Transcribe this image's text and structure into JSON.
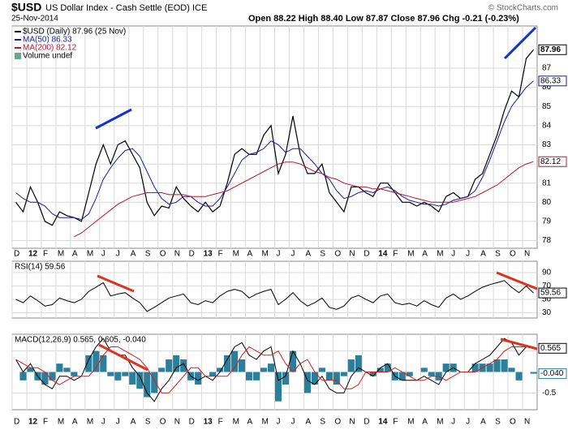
{
  "chart_data": [
    {
      "type": "line",
      "symbol": "$USD",
      "title": "US Dollar Index - Cash Settle (EOD) ICE",
      "subtitle": "25-Nov-2014",
      "quote": "Open 88.22 High 88.40 Low 87.87 Close 87.96 Chg -0.21 (-0.23%)",
      "credit": "© StockCharts.com",
      "notes": [
        "Volume undef"
      ],
      "categories": [
        "D",
        null,
        "12",
        null,
        "F",
        null,
        "M",
        null,
        "A",
        null,
        "M",
        null,
        "J",
        null,
        "J",
        null,
        "A",
        null,
        "S",
        null,
        "O",
        null,
        "N",
        null,
        "D",
        null,
        "13",
        null,
        "F",
        null,
        "M",
        null,
        "A",
        null,
        "M",
        null,
        "J",
        null,
        "J",
        null,
        "A",
        null,
        "S",
        null,
        "O",
        null,
        "N",
        null,
        "D",
        null,
        "14",
        null,
        "F",
        null,
        "M",
        null,
        "A",
        null,
        "M",
        null,
        "J",
        null,
        "J",
        null,
        "A",
        null,
        "S",
        null,
        "O",
        null,
        "N",
        null
      ],
      "ylim": [
        77.6,
        89.2
      ],
      "yticks": [
        78,
        79,
        80,
        81,
        82,
        83,
        84,
        85,
        86,
        87
      ],
      "grid": true,
      "series": [
        {
          "name": "$USD (Daily) 87.96 (25 Nov)",
          "color": "#000000",
          "style": "line",
          "tag": true,
          "values": [
            80.0,
            79.5,
            80.8,
            80.0,
            79.0,
            78.8,
            79.5,
            79.3,
            79.2,
            79.0,
            80.5,
            82.0,
            83.0,
            82.0,
            83.0,
            83.2,
            82.5,
            81.8,
            80.0,
            79.3,
            79.8,
            79.7,
            80.8,
            80.2,
            79.8,
            79.5,
            80.0,
            79.5,
            79.8,
            81.0,
            82.5,
            82.8,
            82.5,
            82.5,
            83.5,
            84.0,
            81.5,
            82.5,
            84.5,
            82.5,
            81.5,
            81.5,
            82.0,
            80.5,
            80.0,
            79.5,
            80.8,
            80.8,
            80.5,
            80.3,
            81.0,
            81.0,
            80.5,
            80.0,
            80.0,
            79.8,
            80.0,
            79.8,
            79.5,
            80.3,
            80.5,
            80.2,
            80.3,
            81.2,
            81.5,
            82.5,
            83.5,
            84.8,
            85.8,
            85.5,
            87.5,
            87.96
          ]
        },
        {
          "name": "MA(50) 86.33",
          "color": "#1a1a9c",
          "style": "line",
          "tag": true,
          "values": [
            80.5,
            80.2,
            80.0,
            80.0,
            79.8,
            79.4,
            79.2,
            79.2,
            79.2,
            79.1,
            79.4,
            80.2,
            81.2,
            81.8,
            82.3,
            82.7,
            82.8,
            82.4,
            81.6,
            80.8,
            80.2,
            79.9,
            80.0,
            80.3,
            80.3,
            80.0,
            79.8,
            79.8,
            80.2,
            80.8,
            81.5,
            82.2,
            82.5,
            82.6,
            82.8,
            83.2,
            83.0,
            82.6,
            82.8,
            82.8,
            82.4,
            82.0,
            81.5,
            81.2,
            80.6,
            80.2,
            80.3,
            80.5,
            80.6,
            80.5,
            80.7,
            80.8,
            80.6,
            80.3,
            80.1,
            80.0,
            79.9,
            79.9,
            79.8,
            79.9,
            80.1,
            80.2,
            80.3,
            80.6,
            81.3,
            82.2,
            83.2,
            84.2,
            85.0,
            85.5,
            86.0,
            86.33
          ]
        },
        {
          "name": "MA(200) 82.12",
          "color": "#b0183a",
          "style": "line",
          "tag": true,
          "values": [
            null,
            null,
            null,
            null,
            null,
            null,
            null,
            null,
            78.2,
            78.4,
            78.7,
            79.0,
            79.3,
            79.6,
            79.9,
            80.1,
            80.3,
            80.4,
            80.5,
            80.5,
            80.5,
            80.4,
            80.4,
            80.4,
            80.3,
            80.3,
            80.3,
            80.4,
            80.5,
            80.6,
            80.8,
            81.0,
            81.2,
            81.4,
            81.6,
            81.8,
            82.0,
            82.1,
            82.1,
            82.0,
            81.8,
            81.6,
            81.5,
            81.3,
            81.2,
            81.0,
            80.9,
            80.8,
            80.8,
            80.7,
            80.7,
            80.6,
            80.5,
            80.4,
            80.3,
            80.2,
            80.1,
            80.0,
            80.0,
            80.0,
            80.0,
            80.1,
            80.2,
            80.3,
            80.5,
            80.7,
            80.9,
            81.2,
            81.5,
            81.8,
            82.0,
            82.12
          ]
        }
      ]
    },
    {
      "type": "line",
      "label": "RSI(14) 59.56",
      "ylim": [
        22,
        107
      ],
      "yticks": [
        30,
        50,
        70,
        90
      ],
      "grid": true,
      "series": [
        {
          "color": "#000000",
          "style": "line",
          "tag": true,
          "values": [
            50,
            45,
            55,
            48,
            40,
            42,
            52,
            48,
            45,
            50,
            62,
            68,
            75,
            55,
            58,
            60,
            52,
            45,
            32,
            38,
            45,
            52,
            55,
            58,
            45,
            42,
            48,
            45,
            55,
            62,
            65,
            62,
            52,
            58,
            62,
            65,
            42,
            50,
            60,
            48,
            40,
            45,
            52,
            38,
            35,
            40,
            52,
            56,
            50,
            45,
            55,
            58,
            45,
            42,
            44,
            40,
            48,
            42,
            38,
            52,
            58,
            50,
            55,
            62,
            68,
            72,
            75,
            78,
            68,
            60,
            70,
            59.56
          ]
        }
      ]
    },
    {
      "type": "line",
      "label": "MACD(12,26,9) 0.565, 0.605, -0.040",
      "categories": [
        "D",
        null,
        "12",
        null,
        "F",
        null,
        "M",
        null,
        "A",
        null,
        "M",
        null,
        "J",
        null,
        "J",
        null,
        "A",
        null,
        "S",
        null,
        "O",
        null,
        "N",
        null,
        "D",
        null,
        "13",
        null,
        "F",
        null,
        "M",
        null,
        "A",
        null,
        "M",
        null,
        "J",
        null,
        "J",
        null,
        "A",
        null,
        "S",
        null,
        "O",
        null,
        "N",
        null,
        "D",
        null,
        "14",
        null,
        "F",
        null,
        "M",
        null,
        "A",
        null,
        "M",
        null,
        "J",
        null,
        "J",
        null,
        "A",
        null,
        "S",
        null,
        "O",
        null,
        "N",
        null
      ],
      "ylim": [
        -0.9,
        0.9
      ],
      "yticks": [
        -0.5,
        0.5
      ],
      "grid": true,
      "series": [
        {
          "color": "#2b7f9a",
          "style": "histogram",
          "last_label": "-0.040",
          "values": [
            0,
            -0.2,
            0.1,
            -0.2,
            -0.3,
            -0.2,
            0.2,
            0.1,
            -0.1,
            0,
            0.4,
            0.5,
            0.4,
            -0.1,
            -0.2,
            -0.1,
            -0.3,
            -0.4,
            -0.6,
            -0.5,
            0.1,
            0.3,
            0.4,
            0.3,
            -0.2,
            -0.3,
            0,
            -0.1,
            0.1,
            0.4,
            0.5,
            0.3,
            -0.2,
            -0.2,
            0.1,
            0.2,
            -0.7,
            -0.3,
            0.5,
            0,
            -0.5,
            -0.3,
            0.1,
            -0.2,
            -0.3,
            -0.1,
            0.3,
            0.4,
            0,
            -0.1,
            0.1,
            0.2,
            -0.2,
            -0.2,
            -0.1,
            0,
            0.1,
            -0.1,
            -0.2,
            0.2,
            0.2,
            0,
            0,
            0.2,
            0.2,
            0.2,
            0.3,
            0.3,
            0.1,
            -0.2,
            0,
            -0.04
          ]
        },
        {
          "color": "#000000",
          "style": "line",
          "tag": true,
          "values": [
            0.3,
            0.0,
            0.2,
            -0.1,
            -0.3,
            -0.4,
            -0.1,
            -0.1,
            -0.2,
            -0.1,
            0.3,
            0.6,
            0.8,
            0.5,
            0.4,
            0.4,
            0.1,
            -0.1,
            -0.5,
            -0.7,
            -0.4,
            -0.2,
            0.1,
            0.2,
            -0.1,
            -0.2,
            -0.1,
            -0.2,
            0.0,
            0.3,
            0.6,
            0.7,
            0.4,
            0.3,
            0.5,
            0.6,
            -0.2,
            -0.1,
            0.5,
            0.2,
            -0.2,
            -0.3,
            -0.1,
            -0.4,
            -0.5,
            -0.5,
            -0.1,
            0.1,
            0.0,
            -0.1,
            0.1,
            0.2,
            -0.1,
            -0.2,
            -0.2,
            -0.2,
            -0.1,
            -0.2,
            -0.3,
            0.0,
            0.1,
            0.0,
            0.0,
            0.2,
            0.3,
            0.4,
            0.6,
            0.8,
            0.7,
            0.4,
            0.6,
            0.565
          ]
        },
        {
          "color": "#d02020",
          "style": "line",
          "values": [
            0.3,
            0.2,
            0.1,
            0.1,
            0.0,
            -0.2,
            -0.3,
            -0.2,
            -0.1,
            -0.1,
            -0.1,
            0.1,
            0.4,
            0.6,
            0.6,
            0.5,
            0.4,
            0.3,
            0.1,
            -0.2,
            -0.5,
            -0.5,
            -0.3,
            -0.1,
            0.1,
            0.1,
            -0.1,
            -0.1,
            -0.1,
            -0.1,
            0.1,
            0.4,
            0.6,
            0.5,
            0.4,
            0.4,
            0.5,
            0.2,
            0.0,
            0.2,
            0.3,
            0.0,
            -0.2,
            -0.2,
            -0.2,
            -0.4,
            -0.4,
            -0.3,
            0.0,
            0.0,
            0.0,
            0.0,
            0.1,
            0.0,
            -0.1,
            -0.2,
            -0.2,
            -0.1,
            -0.1,
            -0.2,
            -0.1,
            0.0,
            0.0,
            0.0,
            0.1,
            0.2,
            0.3,
            0.5,
            0.6,
            0.6,
            0.6,
            0.605
          ]
        }
      ]
    }
  ]
}
